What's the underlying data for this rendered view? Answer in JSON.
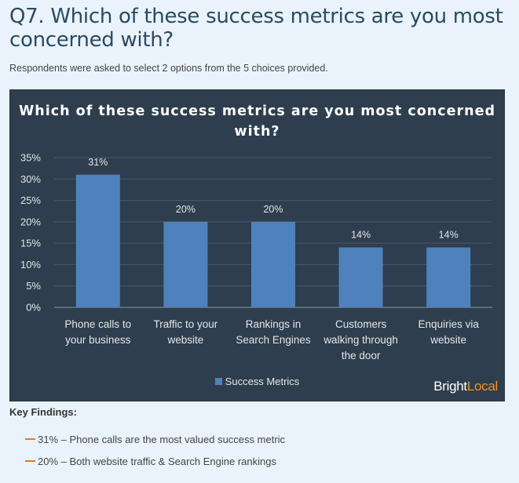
{
  "header": {
    "title": "Q7. Which of these success metrics are you most concerned with?",
    "subtitle": "Respondents were asked to select 2 options from the 5 choices provided."
  },
  "chart_data": {
    "type": "bar",
    "title": "Which of these success metrics are you most concerned with?",
    "categories": [
      [
        "Phone calls to",
        "your business"
      ],
      [
        "Traffic to your",
        "website"
      ],
      [
        "Rankings in",
        "Search Engines"
      ],
      [
        "Customers",
        "walking through",
        "the door"
      ],
      [
        "Enquiries via",
        "website"
      ]
    ],
    "series": [
      {
        "name": "Success Metrics",
        "values": [
          31,
          20,
          20,
          14,
          14
        ],
        "labels": [
          "31%",
          "20%",
          "20%",
          "14%",
          "14%"
        ]
      }
    ],
    "yticks": [
      "0%",
      "5%",
      "10%",
      "15%",
      "20%",
      "25%",
      "30%",
      "35%"
    ],
    "ylim": [
      0,
      35
    ],
    "grid": true,
    "legend": "bottom",
    "bar_color": "#4f81bd",
    "background": "#2e3e4e"
  },
  "brand": {
    "left": "Bright",
    "right": "Local"
  },
  "key_findings": {
    "heading": "Key Findings:",
    "items": [
      "31% – Phone calls are the most valued success metric",
      "20% – Both website traffic & Search Engine rankings"
    ]
  }
}
